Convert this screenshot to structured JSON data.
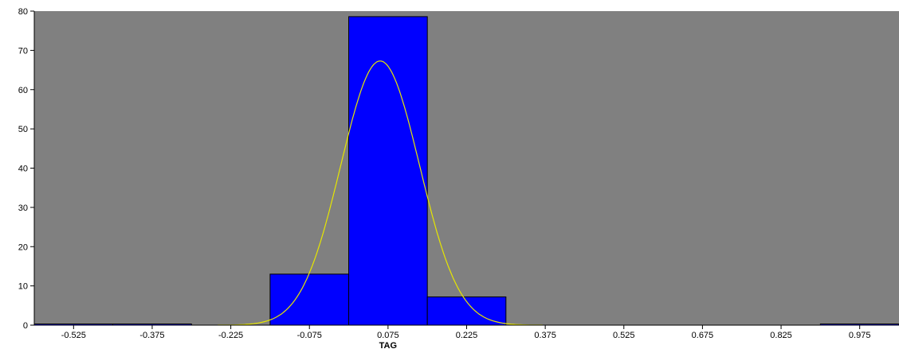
{
  "chart_data": {
    "type": "bar",
    "title": "",
    "xlabel": "TAG",
    "ylabel": "",
    "xlim": [
      -0.6,
      1.05
    ],
    "ylim": [
      0,
      80
    ],
    "x_ticks": [
      -0.525,
      -0.375,
      -0.225,
      -0.075,
      0.075,
      0.225,
      0.375,
      0.525,
      0.675,
      0.825,
      0.975
    ],
    "x_tick_labels": [
      "-0.525",
      "-0.375",
      "-0.225",
      "-0.075",
      "0.075",
      "0.225",
      "0.375",
      "0.525",
      "0.675",
      "0.825",
      "0.975"
    ],
    "y_ticks": [
      0,
      10,
      20,
      30,
      40,
      50,
      60,
      70,
      80
    ],
    "y_tick_labels": [
      "0",
      "10",
      "20",
      "30",
      "40",
      "50",
      "60",
      "70",
      "80"
    ],
    "bins": [
      {
        "x0": -0.6,
        "x1": -0.45,
        "value": 0
      },
      {
        "x0": -0.45,
        "x1": -0.3,
        "value": 0
      },
      {
        "x0": -0.15,
        "x1": 0.0,
        "value": 13
      },
      {
        "x0": 0.0,
        "x1": 0.15,
        "value": 78.6
      },
      {
        "x0": 0.15,
        "x1": 0.3,
        "value": 7.2
      },
      {
        "x0": 0.9,
        "x1": 1.05,
        "value": 0
      }
    ],
    "density_curve": {
      "type": "line",
      "mean": 0.06,
      "sd": 0.075,
      "peak": 67.3,
      "x_range": [
        -0.25,
        0.37
      ]
    },
    "grid": false,
    "legend": "none",
    "colors": {
      "plot_background": "#808080",
      "bar_fill": "#0000ff",
      "bar_stroke": "#000000",
      "curve": "#e6e600"
    }
  }
}
